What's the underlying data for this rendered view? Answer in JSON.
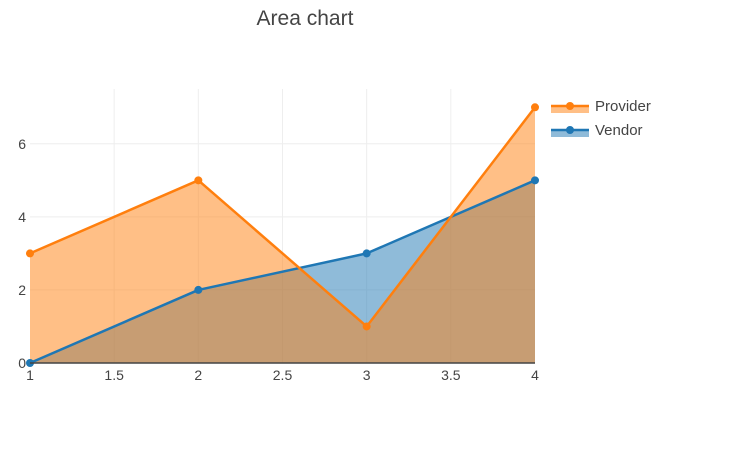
{
  "chart_data": {
    "type": "area",
    "title": "Area chart",
    "xlabel": "",
    "ylabel": "",
    "x": [
      1,
      2,
      3,
      4
    ],
    "xlim": [
      1,
      4
    ],
    "ylim": [
      0,
      7.5
    ],
    "xticks": [
      "1",
      "1.5",
      "2",
      "2.5",
      "3",
      "3.5",
      "4"
    ],
    "yticks": [
      "0",
      "2",
      "4",
      "6"
    ],
    "grid": true,
    "legend_position": "top-right",
    "series": [
      {
        "name": "Provider",
        "values": [
          3,
          5,
          1,
          7
        ],
        "color": "#ff7f0e",
        "fill": "rgba(255,127,14,0.5)"
      },
      {
        "name": "Vendor",
        "values": [
          0,
          2,
          3,
          5
        ],
        "color": "#1f77b4",
        "fill": "rgba(31,119,180,0.5)"
      }
    ]
  }
}
